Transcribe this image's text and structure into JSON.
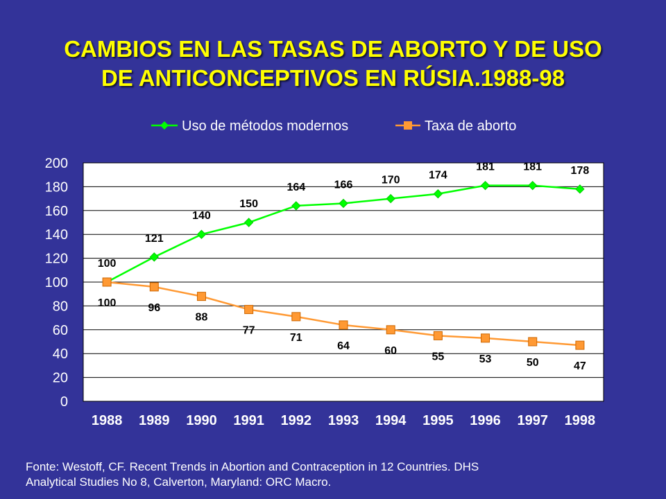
{
  "title": {
    "line1": "CAMBIOS EN LAS TASAS DE ABORTO Y DE USO",
    "line2": "DE ANTICONCEPTIVOS EN RÚSIA.1988-98"
  },
  "colors": {
    "background": "#333399",
    "title": "#FFFF00",
    "series_green": "#00FF00",
    "series_orange": "#FF9933",
    "plot_area": "#FFFFFF"
  },
  "chart_data": {
    "type": "line",
    "categories": [
      "1988",
      "1989",
      "1990",
      "1991",
      "1992",
      "1993",
      "1994",
      "1995",
      "1996",
      "1997",
      "1998"
    ],
    "series": [
      {
        "name": "Uso de métodos modernos",
        "color": "#00FF00",
        "marker": "diamond",
        "values": [
          100,
          121,
          140,
          150,
          164,
          166,
          170,
          174,
          181,
          181,
          178
        ]
      },
      {
        "name": "Taxa de aborto",
        "color": "#FF9933",
        "marker": "square",
        "values": [
          100,
          96,
          88,
          77,
          71,
          64,
          60,
          55,
          53,
          50,
          47
        ]
      }
    ],
    "ylim": [
      0,
      200
    ],
    "yticks": [
      0,
      20,
      40,
      60,
      80,
      100,
      120,
      140,
      160,
      180,
      200
    ],
    "legend_position": "top",
    "data_labels": true,
    "grid": true
  },
  "footer": {
    "line1": "Fonte: Westoff, CF. Recent Trends in Abortion and Contraception in 12 Countries. DHS",
    "line2": "Analytical Studies No 8, Calverton, Maryland: ORC Macro."
  }
}
